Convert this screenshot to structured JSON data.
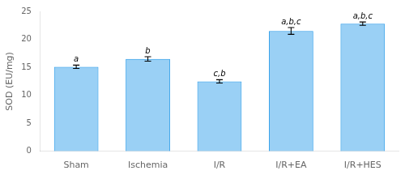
{
  "chart_data": {
    "type": "bar",
    "categories": [
      "Sham",
      "Ischemia",
      "I/R",
      "I/R+EA",
      "I/R+HES"
    ],
    "values": [
      15.1,
      16.5,
      12.5,
      21.5,
      22.8
    ],
    "errors": [
      0.3,
      0.4,
      0.3,
      0.6,
      0.3
    ],
    "annotations": [
      "a",
      "b",
      "c,b",
      "a,b,c",
      "a,b,c"
    ],
    "ylabel": "SOD (EU/mg)",
    "ylim": [
      0,
      25
    ],
    "yticks": [
      0,
      5,
      10,
      15,
      20,
      25
    ],
    "grid": false
  }
}
